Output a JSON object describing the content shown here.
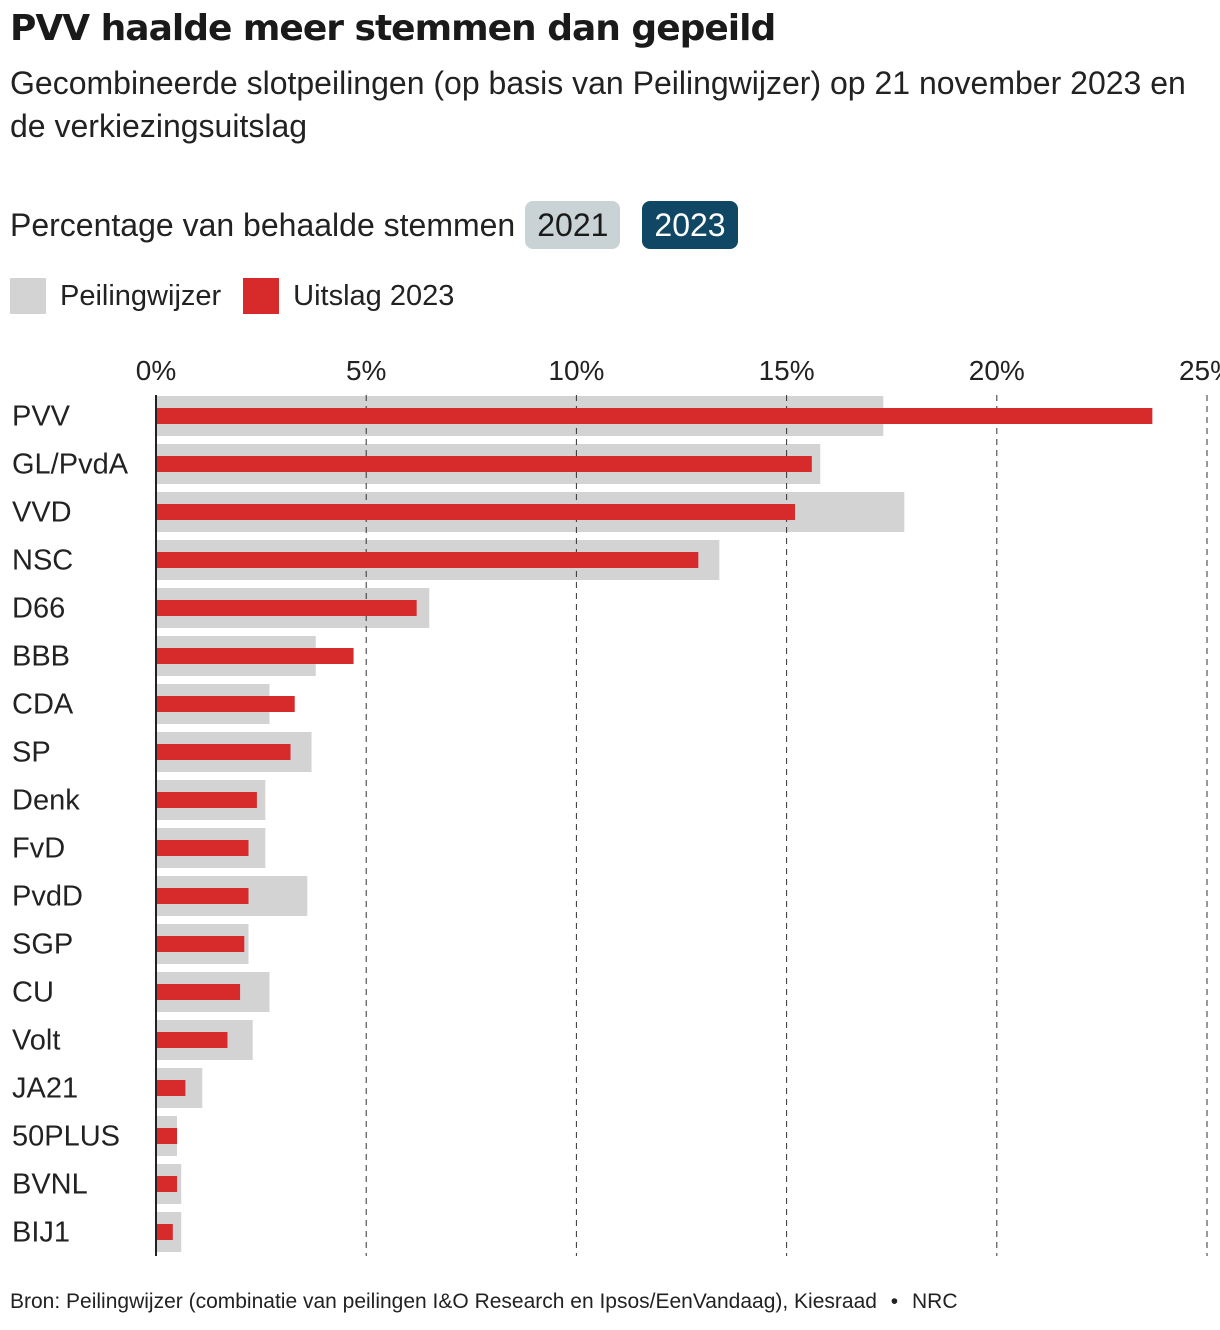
{
  "title": "PVV haalde meer stemmen dan gepeild",
  "subtitle": "Gecombineerde slotpeilingen (op basis van Peilingwijzer) op 21 november 2023 en de verkiezingsuitslag",
  "axis_heading": "Percentage van behaalde stemmen",
  "year_toggle": {
    "options": [
      "2021",
      "2023"
    ],
    "selected": "2023"
  },
  "legend": {
    "poll_label": "Peilingwijzer",
    "result_label": "Uitslag 2023"
  },
  "colors": {
    "poll": "#d3d3d3",
    "result": "#d72b2b",
    "toggle_active": "#0f4764",
    "toggle_inactive": "#c9d3d5"
  },
  "chart_data": {
    "type": "bar",
    "orientation": "horizontal",
    "categories": [
      "PVV",
      "GL/PvdA",
      "VVD",
      "NSC",
      "D66",
      "BBB",
      "CDA",
      "SP",
      "Denk",
      "FvD",
      "PvdD",
      "SGP",
      "CU",
      "Volt",
      "JA21",
      "50PLUS",
      "BVNL",
      "BIJ1"
    ],
    "series": [
      {
        "name": "Peilingwijzer",
        "values": [
          17.3,
          15.8,
          17.8,
          13.4,
          6.5,
          3.8,
          2.7,
          3.7,
          2.6,
          2.6,
          3.6,
          2.2,
          2.7,
          2.3,
          1.1,
          0.5,
          0.6,
          0.6
        ]
      },
      {
        "name": "Uitslag 2023",
        "values": [
          23.7,
          15.6,
          15.2,
          12.9,
          6.2,
          4.7,
          3.3,
          3.2,
          2.4,
          2.2,
          2.2,
          2.1,
          2.0,
          1.7,
          0.7,
          0.5,
          0.5,
          0.4
        ]
      }
    ],
    "x_ticks": [
      "0%",
      "5%",
      "10%",
      "15%",
      "20%",
      "25%"
    ],
    "x_tick_values": [
      0,
      5,
      10,
      15,
      20,
      25
    ],
    "xlim": [
      0,
      25
    ],
    "grid": true
  },
  "footer": {
    "source": "Bron: Peilingwijzer (combinatie van peilingen I&O Research en Ipsos/EenVandaag), Kiesraad",
    "separator": "•",
    "publisher": "NRC"
  }
}
